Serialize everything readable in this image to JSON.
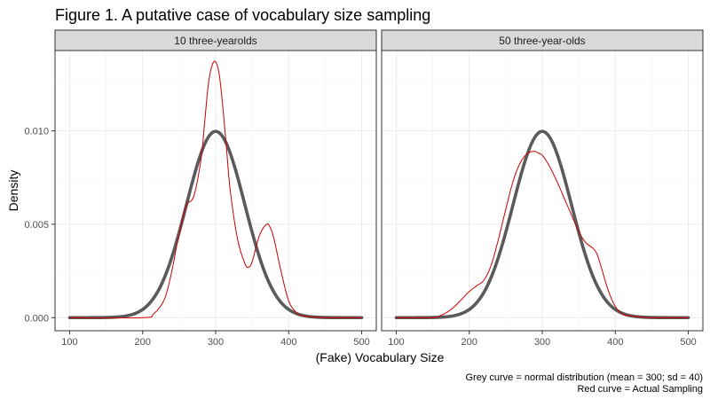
{
  "chart_data": {
    "type": "line",
    "title": "Figure 1. A putative case of vocabulary size sampling",
    "xlabel": "(Fake) Vocabulary Size",
    "ylabel": "Density",
    "xlim": [
      80,
      520
    ],
    "ylim": [
      -0.0007,
      0.0143
    ],
    "x_ticks": [
      100,
      200,
      300,
      400,
      500
    ],
    "y_ticks": [
      0.0,
      0.005,
      0.01
    ],
    "y_tick_labels": [
      "0.000",
      "0.005",
      "0.010"
    ],
    "grid": true,
    "colors": {
      "normal_curve": "#5a5a5a",
      "sampling_curve": "#cc0000",
      "strip_fill": "#d9d9d9",
      "grid": "#ebebeb"
    },
    "normal_distribution": {
      "mean": 300,
      "sd": 40
    },
    "panels": [
      {
        "label": "10 three-yearolds",
        "sampling": {
          "x": [
            100,
            200,
            215,
            230,
            240,
            250,
            260,
            270,
            280,
            285,
            290,
            295,
            300,
            305,
            310,
            315,
            320,
            330,
            340,
            345,
            350,
            360,
            370,
            375,
            380,
            390,
            400,
            410,
            420,
            450,
            500
          ],
          "y": [
            0.0,
            0.0,
            0.0002,
            0.001,
            0.0025,
            0.0045,
            0.006,
            0.0065,
            0.0085,
            0.0105,
            0.0125,
            0.0135,
            0.0137,
            0.013,
            0.0112,
            0.009,
            0.0068,
            0.0042,
            0.0029,
            0.0027,
            0.003,
            0.0044,
            0.005,
            0.0048,
            0.0042,
            0.0024,
            0.0009,
            0.0003,
            0.0001,
            0.0,
            0.0
          ]
        }
      },
      {
        "label": "50 three-year-olds",
        "sampling": {
          "x": [
            100,
            150,
            160,
            170,
            180,
            190,
            200,
            210,
            220,
            230,
            240,
            250,
            260,
            270,
            280,
            290,
            295,
            300,
            310,
            320,
            330,
            340,
            350,
            360,
            370,
            375,
            380,
            390,
            400,
            410,
            420,
            450,
            500
          ],
          "y": [
            0.0,
            0.0,
            0.0001,
            0.0003,
            0.0006,
            0.001,
            0.0014,
            0.0017,
            0.002,
            0.0028,
            0.0042,
            0.0058,
            0.0073,
            0.0083,
            0.0088,
            0.0089,
            0.0088,
            0.0087,
            0.0081,
            0.0073,
            0.0064,
            0.0055,
            0.0046,
            0.004,
            0.0037,
            0.0034,
            0.0028,
            0.0015,
            0.0006,
            0.0002,
            0.0001,
            0.0,
            0.0
          ]
        }
      }
    ],
    "caption_lines": [
      "Grey curve = normal distribution (mean = 300; sd = 40)",
      "Red curve = Actual Sampling"
    ]
  }
}
